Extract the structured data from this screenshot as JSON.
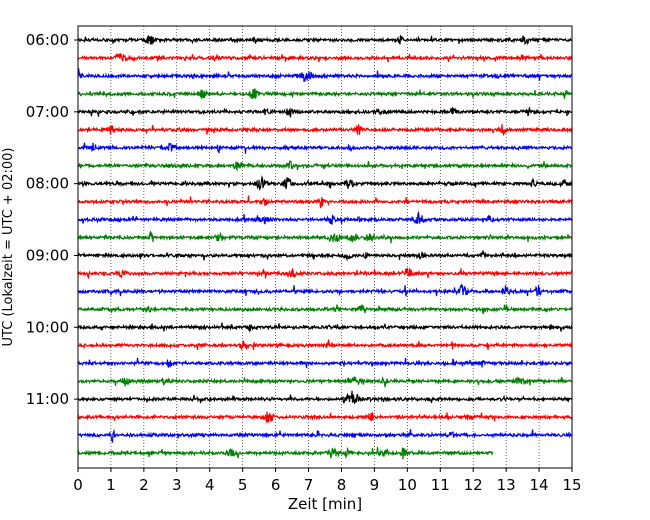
{
  "chart_data": {
    "type": "line",
    "title": "",
    "xlabel": "Zeit  [min]",
    "ylabel": "UTC (Lokalzeit = UTC + 02:00)",
    "xlim": [
      0,
      15
    ],
    "x_ticks": [
      0,
      1,
      2,
      3,
      4,
      5,
      6,
      7,
      8,
      9,
      10,
      11,
      12,
      13,
      14,
      15
    ],
    "x_grid": true,
    "y_ticks": [
      "06:00",
      "07:00",
      "08:00",
      "09:00",
      "10:00",
      "11:00"
    ],
    "trace_interval_min": 15,
    "first_trace": "06:00",
    "trace_colors": [
      "#000000",
      "#ff0000",
      "#0000ff",
      "#008000"
    ],
    "series": [
      {
        "start": "06:00",
        "end_min": 15
      },
      {
        "start": "06:15",
        "end_min": 15
      },
      {
        "start": "06:30",
        "end_min": 15
      },
      {
        "start": "06:45",
        "end_min": 15
      },
      {
        "start": "07:00",
        "end_min": 15
      },
      {
        "start": "07:15",
        "end_min": 15
      },
      {
        "start": "07:30",
        "end_min": 15
      },
      {
        "start": "07:45",
        "end_min": 15
      },
      {
        "start": "08:00",
        "end_min": 15
      },
      {
        "start": "08:15",
        "end_min": 15
      },
      {
        "start": "08:30",
        "end_min": 15
      },
      {
        "start": "08:45",
        "end_min": 15
      },
      {
        "start": "09:00",
        "end_min": 15
      },
      {
        "start": "09:15",
        "end_min": 15
      },
      {
        "start": "09:30",
        "end_min": 15
      },
      {
        "start": "09:45",
        "end_min": 15
      },
      {
        "start": "10:00",
        "end_min": 15
      },
      {
        "start": "10:15",
        "end_min": 15
      },
      {
        "start": "10:30",
        "end_min": 15
      },
      {
        "start": "10:45",
        "end_min": 15
      },
      {
        "start": "11:00",
        "end_min": 15
      },
      {
        "start": "11:15",
        "end_min": 15
      },
      {
        "start": "11:30",
        "end_min": 15
      },
      {
        "start": "11:45",
        "end_min": 12.6
      }
    ]
  }
}
